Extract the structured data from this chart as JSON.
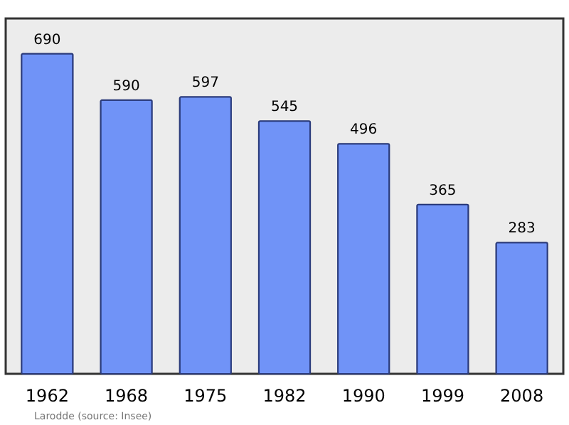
{
  "chart_data": {
    "type": "bar",
    "categories": [
      "1962",
      "1968",
      "1975",
      "1982",
      "1990",
      "1999",
      "2008"
    ],
    "values": [
      690,
      590,
      597,
      545,
      496,
      365,
      283
    ],
    "color": "#7093f7",
    "data_labels": true,
    "annotations": [
      "Larodde    (source: Insee)"
    ]
  }
}
